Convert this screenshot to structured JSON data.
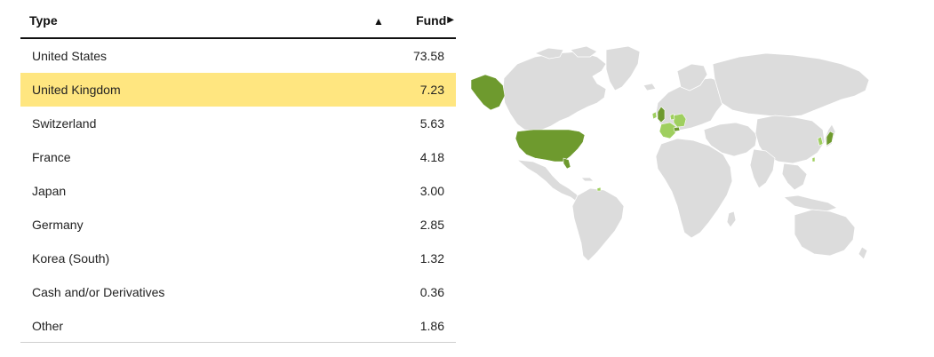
{
  "table": {
    "header": {
      "type_label": "Type",
      "fund_label": "Fund",
      "sort_icon": "triangle-up-icon",
      "fund_icon": "play-right-icon"
    },
    "rows": [
      {
        "type": "United States",
        "fund": "73.58"
      },
      {
        "type": "United Kingdom",
        "fund": "7.23",
        "highlighted": true
      },
      {
        "type": "Switzerland",
        "fund": "5.63"
      },
      {
        "type": "France",
        "fund": "4.18"
      },
      {
        "type": "Japan",
        "fund": "3.00"
      },
      {
        "type": "Germany",
        "fund": "2.85"
      },
      {
        "type": "Korea (South)",
        "fund": "1.32"
      },
      {
        "type": "Cash and/or Derivatives",
        "fund": "0.36"
      },
      {
        "type": "Other",
        "fund": "1.86"
      }
    ]
  },
  "colors": {
    "highlight": "#ffe680",
    "map_land": "#dcdcdc",
    "map_dark_green": "#6e9a2e",
    "map_light_green": "#9fcf5f",
    "map_border": "#ffffff"
  }
}
